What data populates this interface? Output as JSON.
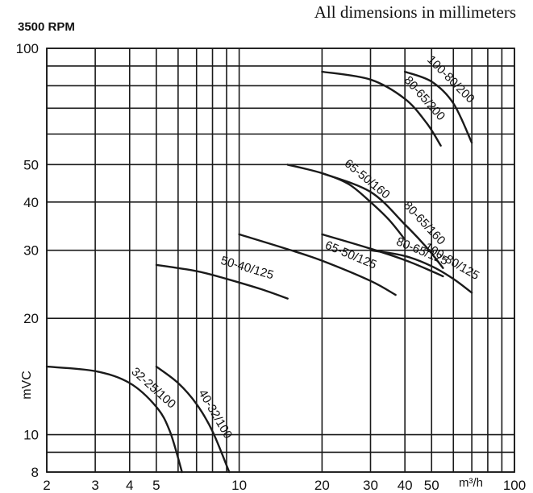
{
  "chart_data": {
    "type": "line",
    "title": "3500 RPM",
    "subtitle": "All dimensions in millimeters",
    "xlabel": "",
    "ylabel": "mVC",
    "x_unit": "m³/h",
    "x_scale": "log",
    "y_scale": "log",
    "xlim": [
      2,
      100
    ],
    "ylim": [
      8,
      100
    ],
    "grid": true,
    "x_ticks": [
      2,
      3,
      4,
      5,
      10,
      20,
      30,
      40,
      50,
      100
    ],
    "x_tick_labels": [
      "2",
      "3",
      "4",
      "5",
      "10",
      "20",
      "30",
      "40",
      "50",
      "100"
    ],
    "y_ticks": [
      8,
      10,
      20,
      30,
      40,
      50,
      100
    ],
    "y_tick_labels": [
      "8",
      "10",
      "20",
      "30",
      "40",
      "50",
      "100"
    ],
    "series": [
      {
        "name": "32-25/100",
        "x": [
          2,
          3,
          4,
          5,
          5.6,
          6.2
        ],
        "y": [
          15,
          14.6,
          13.6,
          11.8,
          10.2,
          8
        ]
      },
      {
        "name": "40-32/100",
        "x": [
          5,
          6,
          7,
          8,
          9.2
        ],
        "y": [
          15,
          13.6,
          12,
          10.2,
          8
        ]
      },
      {
        "name": "50-40/125",
        "x": [
          5,
          7,
          9,
          12,
          15
        ],
        "y": [
          27.5,
          26.5,
          25.3,
          23.8,
          22.5
        ]
      },
      {
        "name": "65-50/125",
        "x": [
          10,
          15,
          20,
          30,
          37
        ],
        "y": [
          33,
          30.2,
          28.2,
          25,
          23
        ]
      },
      {
        "name": "65-50/160",
        "x": [
          15,
          20,
          25,
          30,
          35,
          40
        ],
        "y": [
          50,
          47.5,
          44.5,
          40,
          36,
          32
        ]
      },
      {
        "name": "80-65/160",
        "x": [
          20,
          30,
          40,
          48,
          55
        ],
        "y": [
          47.5,
          42.5,
          35,
          30.5,
          27
        ]
      },
      {
        "name": "80-65/125",
        "x": [
          20,
          30,
          40,
          50,
          55
        ],
        "y": [
          33,
          30.3,
          28.3,
          26.5,
          25.7
        ]
      },
      {
        "name": "100-80/125",
        "x": [
          30,
          40,
          50,
          60,
          70
        ],
        "y": [
          30,
          29,
          27.3,
          25.3,
          23.3
        ]
      },
      {
        "name": "80-65/200",
        "x": [
          20,
          30,
          40,
          48,
          54
        ],
        "y": [
          87,
          83,
          74,
          64,
          56
        ]
      },
      {
        "name": "100-80/200",
        "x": [
          40,
          50,
          60,
          70
        ],
        "y": [
          87,
          82,
          72,
          57
        ]
      }
    ]
  }
}
